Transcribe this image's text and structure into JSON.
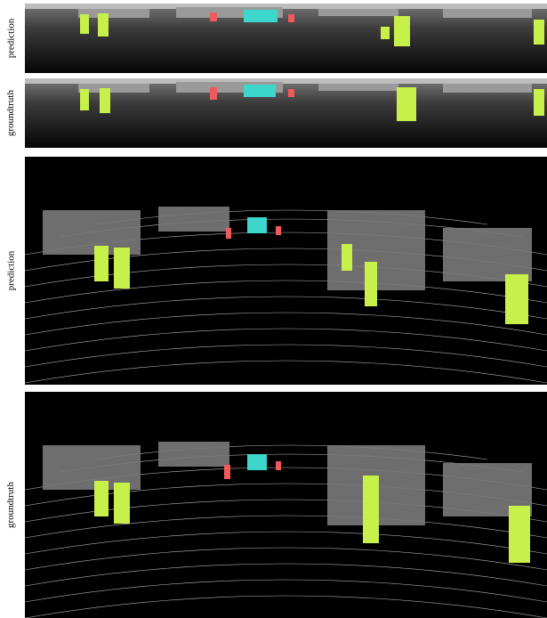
{
  "rows": [
    {
      "label": "prediction",
      "view": "range-image",
      "source": "prediction"
    },
    {
      "label": "groundtruth",
      "view": "range-image",
      "source": "groundtruth"
    },
    {
      "label": "prediction",
      "view": "point-cloud",
      "source": "prediction"
    },
    {
      "label": "groundtruth",
      "view": "point-cloud",
      "source": "groundtruth"
    }
  ],
  "colors": {
    "background": "#000000",
    "ground_points": "#cfcfcf",
    "pedestrian": "#c8f04a",
    "car": "#3cd6cc",
    "cyclist": "#ef5a5a"
  }
}
